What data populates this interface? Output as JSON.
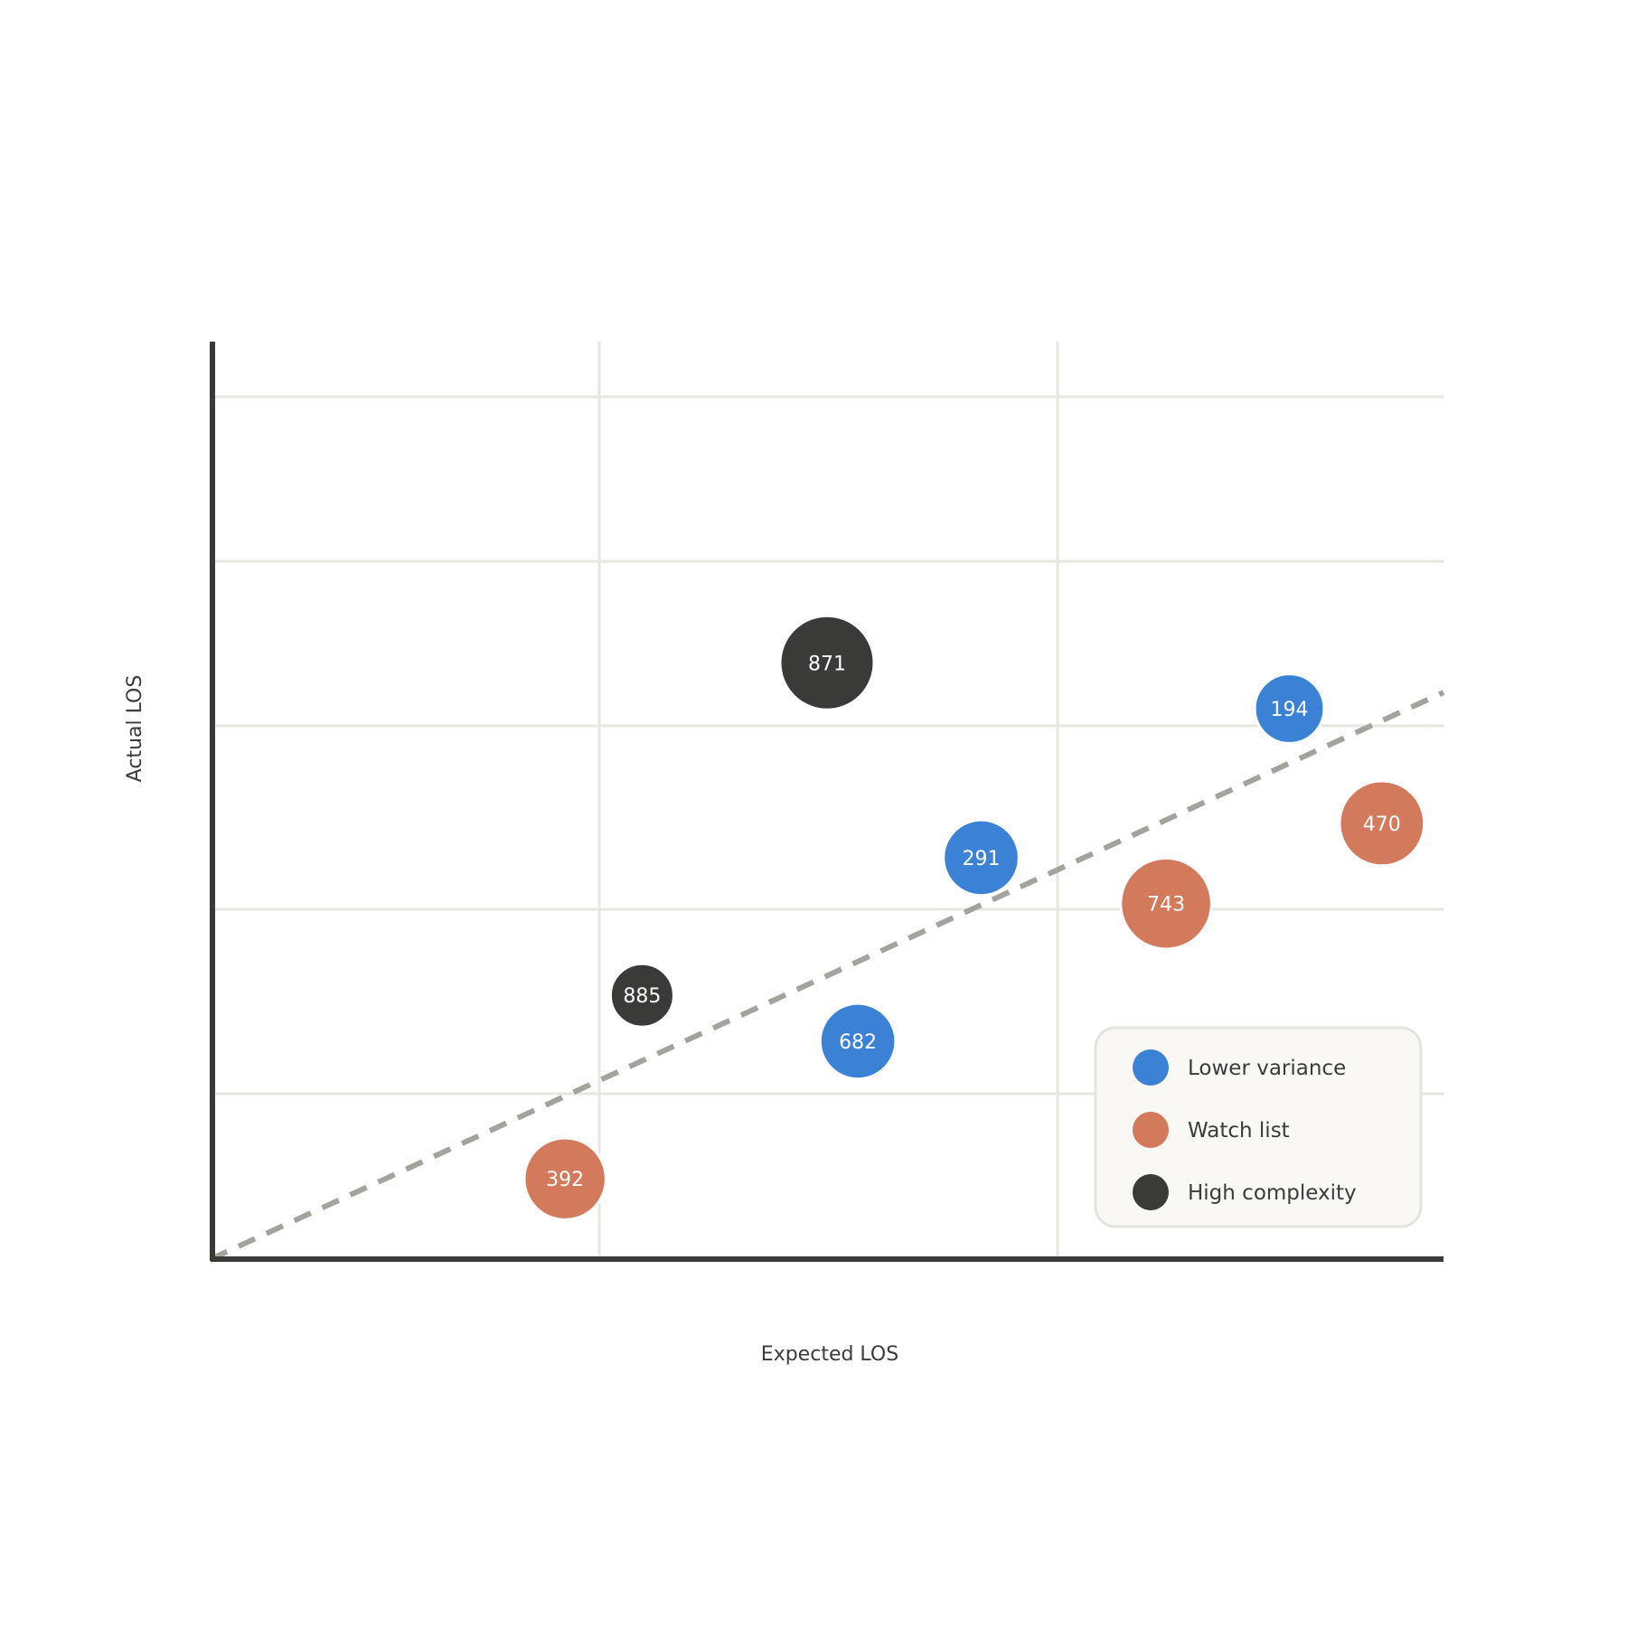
{
  "chart_data": {
    "type": "scatter",
    "xlabel": "Expected LOS",
    "ylabel": "Actual LOS",
    "xlim": [
      0,
      8
    ],
    "ylim": [
      0,
      8
    ],
    "grid": true,
    "tick_labels_shown": false,
    "reference_line": {
      "type": "diagonal",
      "style": "dashed",
      "color": "#a3a39d"
    },
    "legend_position": "bottom-right",
    "series": [
      {
        "name": "Lower variance",
        "color": "#3b82d6",
        "points": [
          {
            "label": "291",
            "x": 5.0,
            "y": 3.5,
            "size": 0.7
          },
          {
            "label": "194",
            "x": 7.0,
            "y": 4.8,
            "size": 0.6
          },
          {
            "label": "682",
            "x": 4.2,
            "y": 1.9,
            "size": 0.7
          }
        ]
      },
      {
        "name": "Watch list",
        "color": "#d27a5b",
        "points": [
          {
            "label": "470",
            "x": 7.6,
            "y": 3.8,
            "size": 0.85
          },
          {
            "label": "743",
            "x": 6.2,
            "y": 3.1,
            "size": 0.95
          },
          {
            "label": "392",
            "x": 2.3,
            "y": 0.7,
            "size": 0.8
          }
        ]
      },
      {
        "name": "High complexity",
        "color": "#3a3a38",
        "points": [
          {
            "label": "871",
            "x": 4.0,
            "y": 5.2,
            "size": 1.0
          },
          {
            "label": "885",
            "x": 2.8,
            "y": 2.3,
            "size": 0.5
          }
        ]
      }
    ]
  }
}
